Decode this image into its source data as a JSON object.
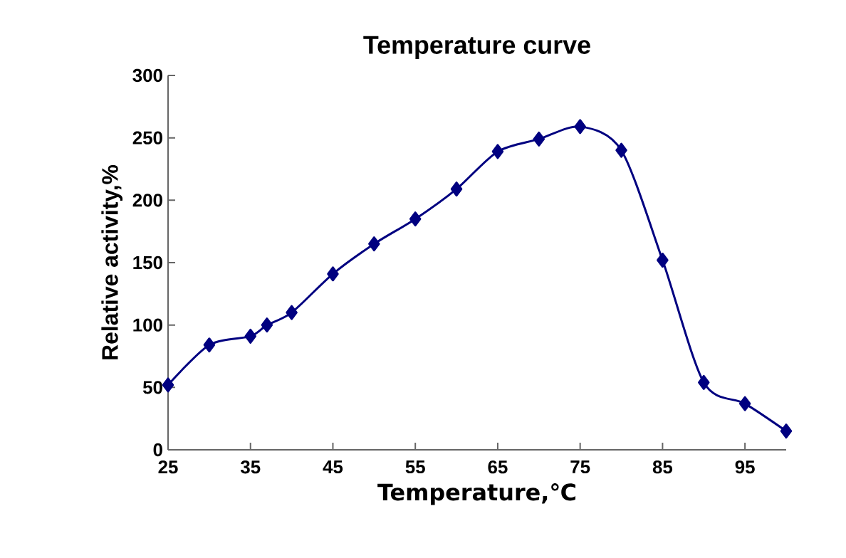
{
  "chart_data": {
    "type": "line",
    "title": "Temperature curve",
    "xlabel": "Temperature,℃",
    "ylabel": "Relative activity,%",
    "x": [
      25,
      30,
      35,
      37,
      40,
      45,
      50,
      55,
      60,
      65,
      70,
      75,
      80,
      85,
      90,
      95,
      100
    ],
    "series": [
      {
        "color": "#000080",
        "values": [
          52,
          84,
          91,
          100,
          110,
          141,
          165,
          185,
          209,
          239,
          249,
          259,
          240,
          152,
          54,
          37,
          15
        ]
      }
    ],
    "xlim": [
      25,
      100
    ],
    "ylim": [
      0,
      300
    ],
    "xticks": [
      25,
      35,
      45,
      55,
      65,
      75,
      85,
      95
    ],
    "yticks": [
      0,
      50,
      100,
      150,
      200,
      250,
      300
    ],
    "marker": "diamond",
    "line_style": "solid"
  }
}
